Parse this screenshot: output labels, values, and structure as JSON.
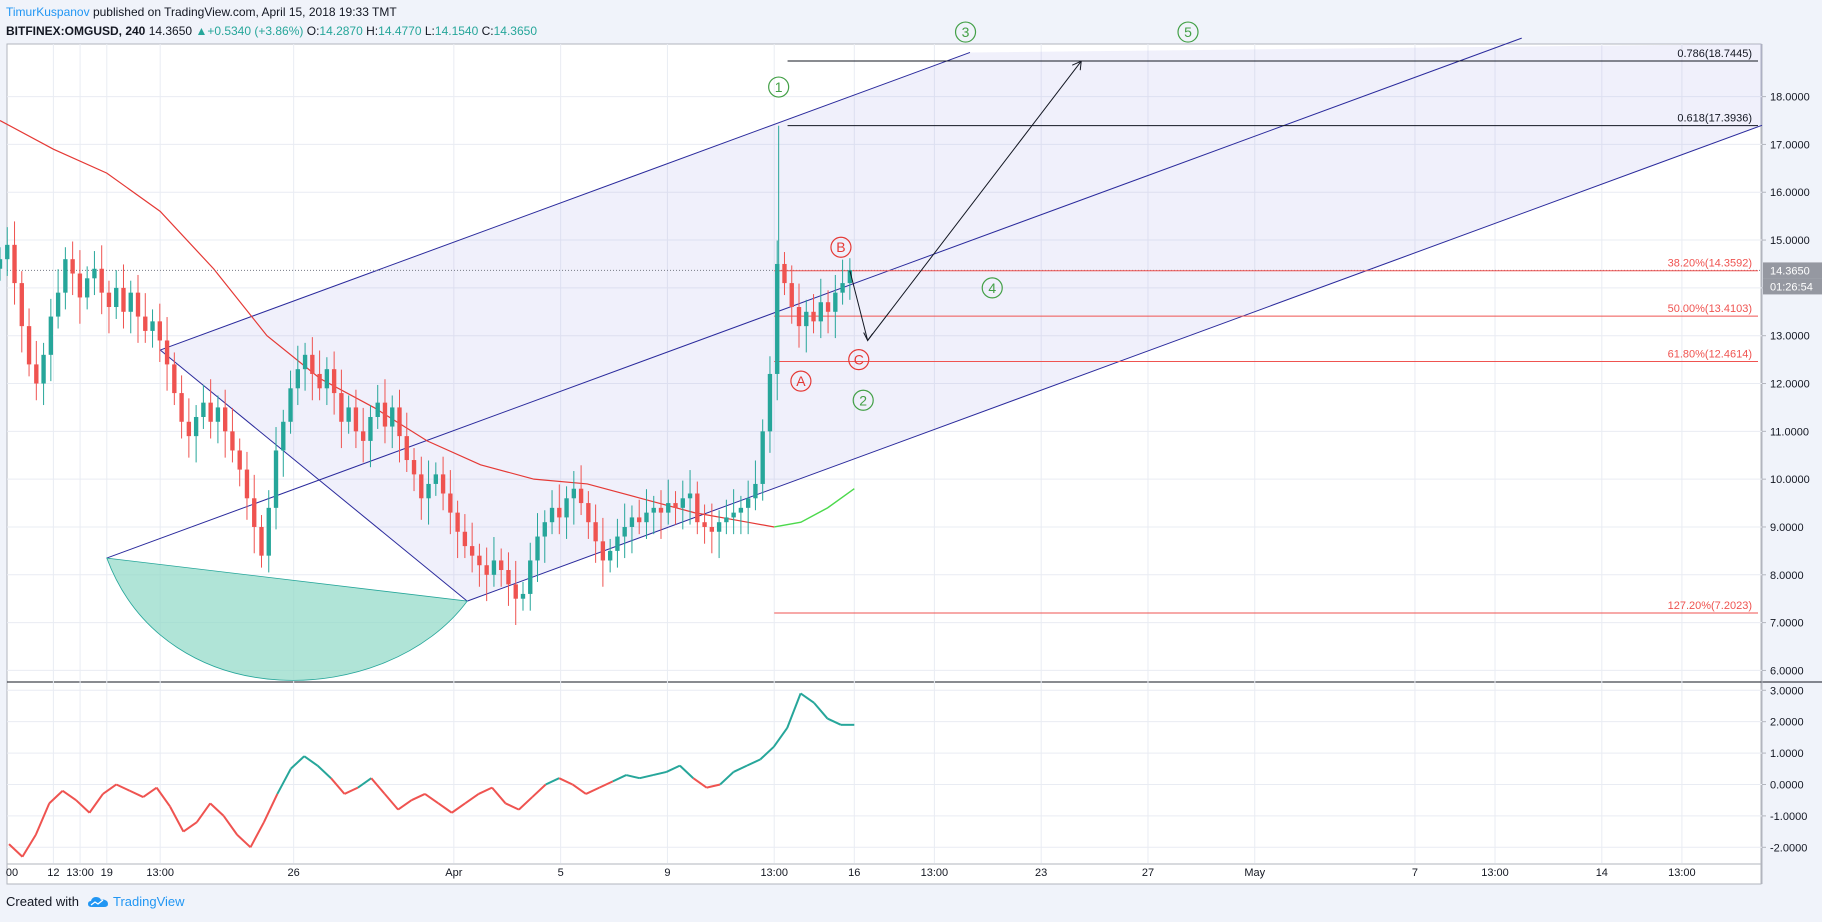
{
  "header": {
    "author": "TimurKuspanov",
    "published_text": "published on TradingView.com, April 15, 2018 19:33 TMT",
    "symbol": "BITFINEX:OMGUSD, 240",
    "last": "14.3650",
    "change": "▲+0.5340 (+3.86%)",
    "o_label": "O:",
    "o": "14.2870",
    "h_label": "H:",
    "h": "14.4770",
    "l_label": "L:",
    "l": "14.1540",
    "c_label": "C:",
    "c": "14.3650"
  },
  "footer": {
    "created_with": "Created with",
    "brand": "TradingView",
    "brand_icon": "tradingview-cloud-icon"
  },
  "chart_data": {
    "type": "candlestick",
    "price_axis": {
      "ylim": [
        5.8,
        19.1
      ],
      "ticks": [
        "6.0000",
        "7.0000",
        "8.0000",
        "9.0000",
        "10.0000",
        "11.0000",
        "12.0000",
        "13.0000",
        "14.0000",
        "15.0000",
        "16.0000",
        "17.0000",
        "18.0000"
      ]
    },
    "indicator_axis": {
      "ylim": [
        -2.5,
        3.2
      ],
      "ticks": [
        "-2.0000",
        "-1.0000",
        "0.0000",
        "1.0000",
        "2.0000",
        "3.0000"
      ]
    },
    "x_ticks": [
      "00",
      "12",
      "13:00",
      "19",
      "13:00",
      "26",
      "Apr",
      "5",
      "9",
      "13:00",
      "16",
      "13:00",
      "23",
      "27",
      "May",
      "7",
      "13:00",
      "14",
      "13:00"
    ],
    "x_range": [
      "2018-03-15",
      "2018-05-20"
    ],
    "x_tick_dates": [
      "2018-03-15",
      "2018-03-17",
      "2018-03-18",
      "2018-03-19",
      "2018-03-21",
      "2018-03-26",
      "2018-04-01",
      "2018-04-05",
      "2018-04-09",
      "2018-04-13",
      "2018-04-16",
      "2018-04-19",
      "2018-04-23",
      "2018-04-27",
      "2018-05-01",
      "2018-05-07",
      "2018-05-10",
      "2018-05-14",
      "2018-05-17"
    ],
    "last_price": {
      "value": 14.365,
      "label": "14.3650",
      "countdown": "01:26:54"
    },
    "candles_close": [
      14.6,
      14.9,
      14.1,
      13.2,
      12.4,
      12.0,
      12.6,
      13.4,
      13.9,
      14.6,
      14.3,
      13.8,
      14.2,
      14.4,
      13.9,
      13.6,
      14.0,
      13.5,
      13.9,
      13.4,
      13.1,
      13.3,
      12.9,
      12.4,
      11.8,
      11.2,
      10.9,
      11.3,
      11.6,
      11.2,
      11.5,
      11.0,
      10.6,
      10.2,
      9.6,
      9.0,
      8.4,
      9.4,
      10.6,
      11.2,
      11.9,
      12.3,
      12.6,
      12.2,
      11.9,
      12.3,
      11.8,
      11.2,
      11.5,
      11.0,
      10.8,
      11.3,
      11.6,
      11.1,
      11.5,
      10.9,
      10.4,
      10.1,
      9.6,
      9.9,
      10.1,
      9.7,
      9.3,
      8.9,
      8.6,
      8.4,
      8.2,
      8.0,
      8.3,
      8.1,
      7.8,
      7.5,
      7.6,
      8.3,
      8.8,
      9.1,
      9.4,
      9.2,
      9.6,
      9.8,
      9.5,
      9.1,
      8.7,
      8.3,
      8.5,
      8.8,
      9.0,
      9.2,
      9.1,
      9.3,
      9.4,
      9.3,
      9.5,
      9.4,
      9.6,
      9.7,
      9.1,
      9.0,
      8.9,
      9.1,
      9.2,
      9.3,
      9.4,
      9.6,
      9.9,
      11.0,
      12.2,
      14.5,
      14.1,
      13.6,
      13.2,
      13.5,
      13.3,
      13.7,
      13.5,
      13.9,
      14.1,
      14.37
    ],
    "candles_span": [
      "2018-03-15T00:00",
      "2018-04-15T20:00"
    ],
    "moving_average": [
      [
        "2018-03-15",
        17.5
      ],
      [
        "2018-03-17",
        16.9
      ],
      [
        "2018-03-19",
        16.4
      ],
      [
        "2018-03-21",
        15.6
      ],
      [
        "2018-03-23",
        14.4
      ],
      [
        "2018-03-25",
        13.0
      ],
      [
        "2018-03-27",
        12.1
      ],
      [
        "2018-03-29",
        11.5
      ],
      [
        "2018-03-31",
        10.8
      ],
      [
        "2018-04-02",
        10.3
      ],
      [
        "2018-04-04",
        10.0
      ],
      [
        "2018-04-06",
        9.9
      ],
      [
        "2018-04-08",
        9.6
      ],
      [
        "2018-04-10",
        9.3
      ],
      [
        "2018-04-12",
        9.1
      ],
      [
        "2018-04-13",
        9.0
      ]
    ],
    "moving_average_ext": [
      [
        "2018-04-13",
        9.0
      ],
      [
        "2018-04-14",
        9.1
      ],
      [
        "2018-04-15",
        9.4
      ],
      [
        "2018-04-16",
        9.8
      ]
    ],
    "indicator": [
      -1.9,
      -2.3,
      -1.6,
      -0.6,
      -0.2,
      -0.5,
      -0.9,
      -0.3,
      0.0,
      -0.2,
      -0.4,
      -0.1,
      -0.7,
      -1.5,
      -1.2,
      -0.6,
      -1.0,
      -1.6,
      -2.0,
      -1.2,
      -0.3,
      0.5,
      0.9,
      0.6,
      0.2,
      -0.3,
      -0.1,
      0.2,
      -0.3,
      -0.8,
      -0.5,
      -0.3,
      -0.6,
      -0.9,
      -0.6,
      -0.3,
      -0.1,
      -0.6,
      -0.8,
      -0.4,
      0.0,
      0.2,
      0.0,
      -0.3,
      -0.1,
      0.1,
      0.3,
      0.2,
      0.3,
      0.4,
      0.6,
      0.2,
      -0.1,
      0.0,
      0.4,
      0.6,
      0.8,
      1.2,
      1.8,
      2.9,
      2.6,
      2.1,
      1.9,
      1.9
    ],
    "fib_red": [
      {
        "label": "38.20%(14.3592)",
        "value": 14.3592
      },
      {
        "label": "50.00%(13.4103)",
        "value": 13.4103
      },
      {
        "label": "61.80%(12.4614)",
        "value": 12.4614
      },
      {
        "label": "127.20%(7.2023)",
        "value": 7.2023
      }
    ],
    "fib_black": [
      {
        "label": "0.786(18.7445)",
        "value": 18.7445
      },
      {
        "label": "0.618(17.3936)",
        "value": 17.3936
      }
    ],
    "wave_labels": {
      "green": [
        "1",
        "2",
        "4",
        "3",
        "5"
      ],
      "red": [
        "A",
        "B",
        "C"
      ]
    },
    "colors": {
      "up": "#26a69a",
      "down": "#ef5350",
      "channel": "#2a2a9c",
      "ma": "#e53935",
      "ma_ext": "#4cd94c",
      "fib_red": "#ef5350",
      "fib_black": "#131722",
      "arc": "#8fd8c6",
      "grid": "#e9ecf3"
    }
  }
}
